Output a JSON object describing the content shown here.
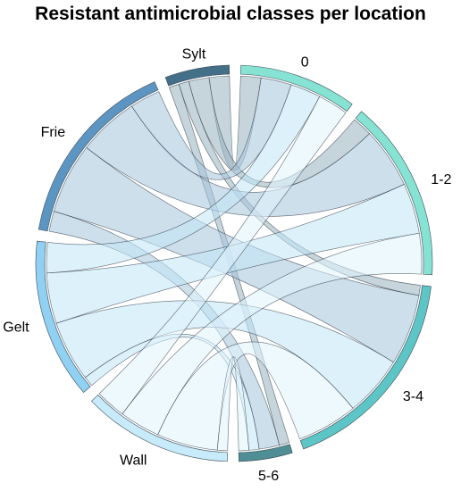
{
  "title": "Resistant antimicrobial classes per location",
  "groups": {
    "locations": [
      "Sylt",
      "Frie",
      "Gelt",
      "Wall"
    ],
    "classes": [
      "0",
      "1-2",
      "3-4",
      "5-6"
    ]
  },
  "colors": {
    "Sylt": "#436f88",
    "Frie": "#5d95c2",
    "Gelt": "#8fd0f3",
    "Wall": "#c7ebfb",
    "0": "#86e3d4",
    "1-2": "#86e3d4",
    "3-4": "#5ec5c7",
    "5-6": "#4f8e94"
  },
  "chart_data": {
    "type": "chord",
    "title": "Resistant antimicrobial classes per location",
    "segments": [
      "0",
      "1-2",
      "3-4",
      "5-6",
      "Wall",
      "Gelt",
      "Frie",
      "Sylt"
    ],
    "flows": [
      {
        "from": "Sylt",
        "to": "0",
        "value": 2
      },
      {
        "from": "Sylt",
        "to": "1-2",
        "value": 2
      },
      {
        "from": "Sylt",
        "to": "3-4",
        "value": 1
      },
      {
        "from": "Sylt",
        "to": "5-6",
        "value": 1
      },
      {
        "from": "Frie",
        "to": "0",
        "value": 3
      },
      {
        "from": "Frie",
        "to": "1-2",
        "value": 6
      },
      {
        "from": "Frie",
        "to": "3-4",
        "value": 7
      },
      {
        "from": "Frie",
        "to": "5-6",
        "value": 2
      },
      {
        "from": "Gelt",
        "to": "0",
        "value": 3
      },
      {
        "from": "Gelt",
        "to": "1-2",
        "value": 5
      },
      {
        "from": "Gelt",
        "to": "3-4",
        "value": 6
      },
      {
        "from": "Gelt",
        "to": "5-6",
        "value": 1
      },
      {
        "from": "Wall",
        "to": "0",
        "value": 3
      },
      {
        "from": "Wall",
        "to": "1-2",
        "value": 4
      },
      {
        "from": "Wall",
        "to": "3-4",
        "value": 6
      },
      {
        "from": "Wall",
        "to": "5-6",
        "value": 1
      }
    ]
  }
}
